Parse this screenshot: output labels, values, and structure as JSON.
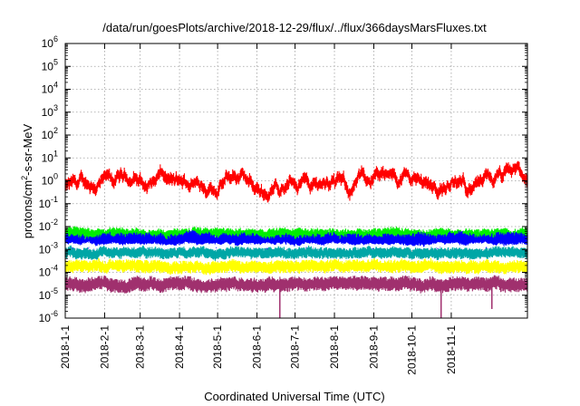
{
  "chart_data": {
    "type": "line",
    "title": "/data/run/goesPlots/archive/2018-12-29/flux/../flux/366daysMarsFluxes.txt",
    "xlabel": "Coordinated Universal Time (UTC)",
    "ylabel_main": "protons/cm",
    "ylabel_sup": "2",
    "ylabel_rest": "-s-sr-MeV",
    "y_scale": "log",
    "ylim": [
      1e-06,
      1000000.0
    ],
    "x_range_days": [
      0,
      364
    ],
    "grid": true,
    "grid_style": "dotted",
    "y_ticks": [
      {
        "base": "10",
        "exp": "-6",
        "value": 1e-06
      },
      {
        "base": "10",
        "exp": "-5",
        "value": 1e-05
      },
      {
        "base": "10",
        "exp": "-4",
        "value": 0.0001
      },
      {
        "base": "10",
        "exp": "-3",
        "value": 0.001
      },
      {
        "base": "10",
        "exp": "-2",
        "value": 0.01
      },
      {
        "base": "10",
        "exp": "-1",
        "value": 0.1
      },
      {
        "base": "10",
        "exp": "0",
        "value": 1
      },
      {
        "base": "10",
        "exp": "1",
        "value": 10.0
      },
      {
        "base": "10",
        "exp": "2",
        "value": 100.0
      },
      {
        "base": "10",
        "exp": "3",
        "value": 1000.0
      },
      {
        "base": "10",
        "exp": "4",
        "value": 10000.0
      },
      {
        "base": "10",
        "exp": "5",
        "value": 100000.0
      },
      {
        "base": "10",
        "exp": "6",
        "value": 1000000.0
      }
    ],
    "x_ticks": [
      {
        "label": "2018-1-1",
        "day": 0
      },
      {
        "label": "2018-2-1",
        "day": 31
      },
      {
        "label": "2018-3-1",
        "day": 59
      },
      {
        "label": "2018-4-1",
        "day": 90
      },
      {
        "label": "2018-5-1",
        "day": 120
      },
      {
        "label": "2018-6-1",
        "day": 151
      },
      {
        "label": "2018-7-1",
        "day": 181
      },
      {
        "label": "2018-8-1",
        "day": 212
      },
      {
        "label": "2018-9-1",
        "day": 243
      },
      {
        "label": "2018-10-1",
        "day": 273
      },
      {
        "label": "2018-11-1",
        "day": 304
      }
    ],
    "series": [
      {
        "color": "#ff0000",
        "center_log10": 0.0,
        "spread_dex": 0.45,
        "band_dex": 0.35,
        "x": [
          0,
          20,
          40,
          55,
          65,
          75,
          90,
          105,
          120,
          135,
          150,
          160,
          170,
          185,
          195,
          210,
          225,
          235,
          245,
          255,
          270,
          285,
          300,
          315,
          330,
          345,
          355,
          364
        ],
        "y": [
          0.5,
          0.7,
          0.9,
          1.5,
          0.6,
          1.5,
          0.6,
          0.9,
          0.6,
          1.6,
          0.5,
          0.3,
          0.6,
          1.2,
          0.7,
          1.2,
          0.4,
          1.2,
          2.0,
          1.0,
          1.5,
          0.8,
          0.5,
          0.6,
          0.7,
          1.2,
          2.5,
          1.2
        ]
      },
      {
        "color": "#00ee00",
        "center_log10": -2.35,
        "spread_dex": 0.1,
        "band_dex": 0.4,
        "x": [
          0,
          364
        ],
        "y": [
          0.0045,
          0.0045
        ]
      },
      {
        "color": "#0000ff",
        "center_log10": -2.6,
        "spread_dex": 0.12,
        "band_dex": 0.45,
        "x": [
          0,
          364
        ],
        "y": [
          0.0025,
          0.0025
        ]
      },
      {
        "color": "#ffffff",
        "center_log10": -2.85,
        "spread_dex": 0.1,
        "band_dex": 0.2,
        "x": [
          0,
          364
        ],
        "y": [
          0.0014,
          0.0014
        ]
      },
      {
        "color": "#00a6a6",
        "center_log10": -3.15,
        "spread_dex": 0.1,
        "band_dex": 0.35,
        "x": [
          0,
          364
        ],
        "y": [
          0.0007,
          0.0007
        ]
      },
      {
        "color": "#ffff00",
        "center_log10": -3.75,
        "spread_dex": 0.1,
        "band_dex": 0.4,
        "x": [
          0,
          364
        ],
        "y": [
          0.00018,
          0.00018
        ]
      },
      {
        "color": "#a0306e",
        "center_log10": -4.55,
        "spread_dex": 0.1,
        "band_dex": 0.45,
        "x": [
          0,
          364
        ],
        "y": [
          3e-05,
          3e-05
        ],
        "dips": [
          {
            "day": 169,
            "value": 1e-06
          },
          {
            "day": 296,
            "value": 1e-06
          },
          {
            "day": 336,
            "value": 2.5e-06
          }
        ]
      }
    ]
  }
}
